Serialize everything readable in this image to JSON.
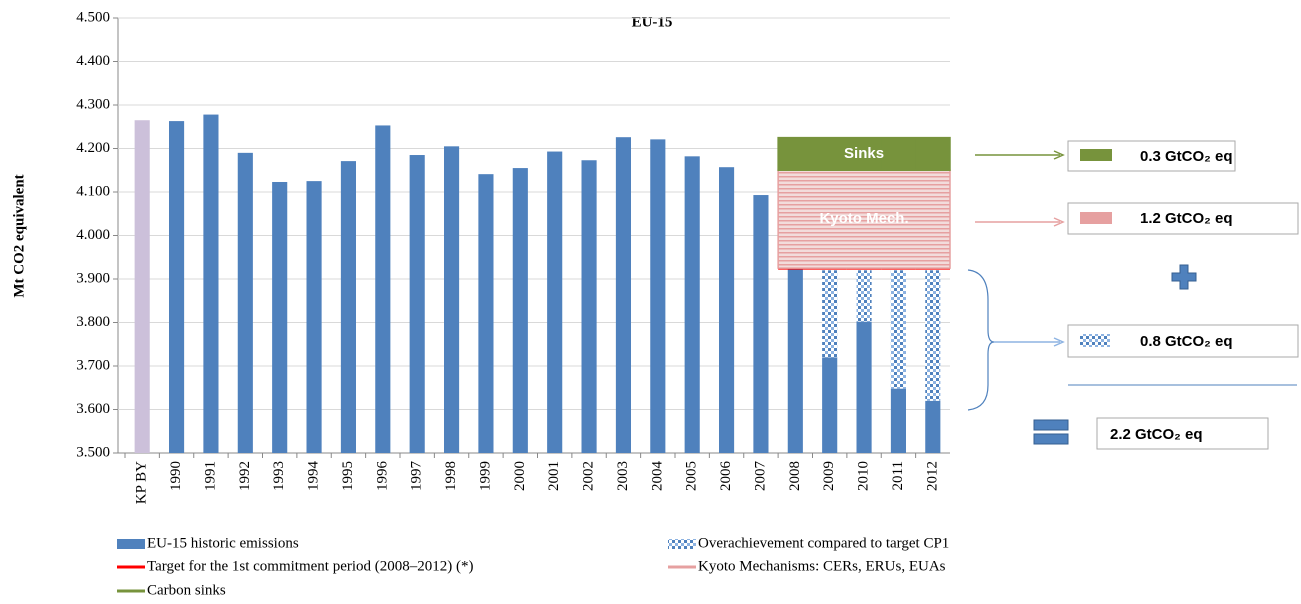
{
  "chart_data": {
    "type": "bar",
    "title": "EU-15",
    "y_label": "Mt CO2 equivalent",
    "categories": [
      "KP BY",
      "1990",
      "1991",
      "1992",
      "1993",
      "1994",
      "1995",
      "1996",
      "1997",
      "1998",
      "1999",
      "2000",
      "2001",
      "2002",
      "2003",
      "2004",
      "2005",
      "2006",
      "2007",
      "2008",
      "2009",
      "2010",
      "2011",
      "2012"
    ],
    "ylim": [
      3500,
      4500
    ],
    "yticks": [
      {
        "value": 3500,
        "label": "3.500"
      },
      {
        "value": 3600,
        "label": "3.600"
      },
      {
        "value": 3700,
        "label": "3.700"
      },
      {
        "value": 3800,
        "label": "3.800"
      },
      {
        "value": 3900,
        "label": "3.900"
      },
      {
        "value": 4000,
        "label": "4.000"
      },
      {
        "value": 4100,
        "label": "4.100"
      },
      {
        "value": 4200,
        "label": "4.200"
      },
      {
        "value": 4300,
        "label": "4.300"
      },
      {
        "value": 4400,
        "label": "4.400"
      },
      {
        "value": 4500,
        "label": "4.500"
      }
    ],
    "grid": true,
    "series": [
      {
        "name": "EU-15 historic emissions",
        "type": "bar",
        "stack": "emissions",
        "color": "#4f81bd",
        "colors": [
          "#ccc0da",
          "#4f81bd",
          "#4f81bd",
          "#4f81bd",
          "#4f81bd",
          "#4f81bd",
          "#4f81bd",
          "#4f81bd",
          "#4f81bd",
          "#4f81bd",
          "#4f81bd",
          "#4f81bd",
          "#4f81bd",
          "#4f81bd",
          "#4f81bd",
          "#4f81bd",
          "#4f81bd",
          "#4f81bd",
          "#4f81bd",
          "#4f81bd",
          "#4f81bd",
          "#4f81bd",
          "#4f81bd",
          "#4f81bd"
        ],
        "values": [
          4265,
          4263,
          4278,
          4190,
          4123,
          4125,
          4171,
          4253,
          4185,
          4205,
          4141,
          4155,
          4193,
          4173,
          4226,
          4221,
          4182,
          4157,
          4093,
          4008,
          3720,
          3802,
          3648,
          3620
        ]
      },
      {
        "name": "Overachievement compared to target CP1",
        "type": "bar",
        "stack": "emissions",
        "color": "#5b9bd5",
        "pattern": "dots",
        "values": [
          null,
          null,
          null,
          null,
          null,
          null,
          null,
          null,
          null,
          null,
          null,
          null,
          null,
          null,
          null,
          null,
          null,
          null,
          null,
          null,
          200,
          118,
          272,
          300
        ]
      },
      {
        "name": "Target for the 1st commitment period (2008–2012) (*)",
        "type": "line",
        "stack": "target",
        "color": "#ff0000",
        "values": [
          null,
          null,
          null,
          null,
          null,
          null,
          null,
          null,
          null,
          null,
          null,
          null,
          null,
          null,
          null,
          null,
          null,
          null,
          null,
          3925,
          3925,
          3925,
          3925,
          3925
        ]
      },
      {
        "name": "Kyoto Mechanisms: CERs, ERUs, EUAs",
        "type": "band",
        "stack": "target",
        "color": "#e6a0a0",
        "pattern": "hlines",
        "label": "Kyoto Mech.",
        "values": [
          null,
          null,
          null,
          null,
          null,
          null,
          null,
          null,
          null,
          null,
          null,
          null,
          null,
          null,
          null,
          null,
          null,
          null,
          null,
          225,
          225,
          225,
          225,
          225
        ]
      },
      {
        "name": "Carbon sinks",
        "type": "band",
        "stack": "target",
        "color": "#77933c",
        "label": "Sinks",
        "values": [
          null,
          null,
          null,
          null,
          null,
          null,
          null,
          null,
          null,
          null,
          null,
          null,
          null,
          null,
          null,
          null,
          null,
          null,
          null,
          75,
          75,
          75,
          75,
          75
        ]
      }
    ],
    "annotations": [
      "0.3 GtCO₂ eq",
      "1.2 GtCO₂ eq",
      "0.8 GtCO₂ eq",
      "2.2 GtCO₂ eq"
    ]
  }
}
